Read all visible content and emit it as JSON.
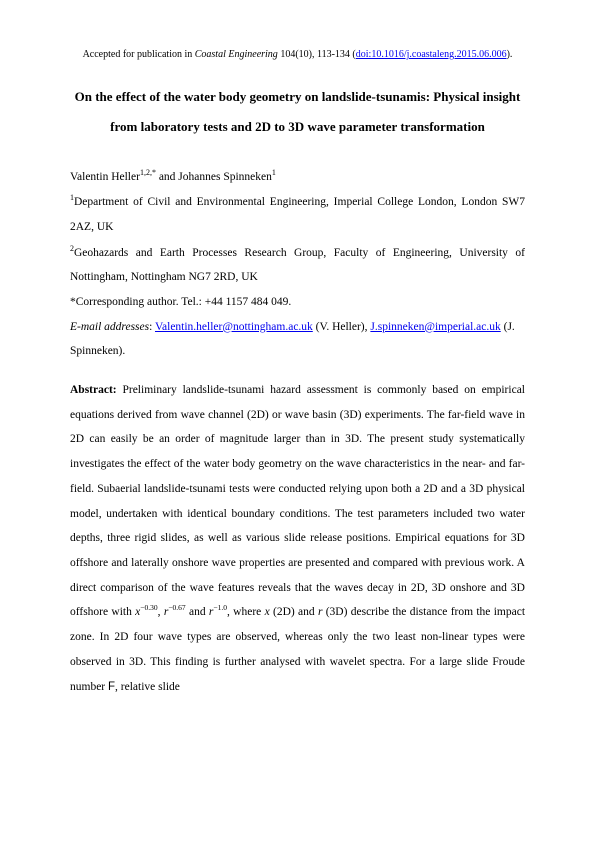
{
  "header": {
    "prefix": "Accepted for publication in ",
    "journal": "Coastal Engineering",
    "citation": " 104(10), 113-134 (",
    "doi_label": "doi:10.1016/j.coastaleng.2015.06.006",
    "suffix": ")."
  },
  "title": "On the effect of the water body geometry on landslide-tsunamis: Physical insight from laboratory tests and 2D to 3D wave parameter transformation",
  "authors": {
    "a1_name": "Valentin Heller",
    "a1_sup": "1,2,*",
    "joiner": " and ",
    "a2_name": "Johannes Spinneken",
    "a2_sup": "1"
  },
  "affiliations": {
    "aff1_sup": "1",
    "aff1_text": "Department of Civil and Environmental Engineering, Imperial College London, London SW7 2AZ, UK",
    "aff2_sup": "2",
    "aff2_text": "Geohazards and Earth Processes Research Group, Faculty of Engineering, University of Nottingham, Nottingham NG7 2RD, UK"
  },
  "corresponding": "*Corresponding author. Tel.: +44 1157 484 049.",
  "emails": {
    "label": "E-mail addresses",
    "sep": ": ",
    "e1": "Valentin.heller@nottingham.ac.uk",
    "e1_after": " (V. Heller), ",
    "e2": "J.spinneken@imperial.ac.uk",
    "e2_after": " (J. Spinneken)."
  },
  "abstract": {
    "label": "Abstract:",
    "p1": " Preliminary landslide-tsunami hazard assessment is commonly based on empirical equations derived from wave channel (2D) or wave basin (3D) experiments. The far-field wave in 2D can easily be an order of magnitude larger than in 3D. The present study systematically investigates the effect of the water body geometry on the wave characteristics in the near- and far-field. Subaerial landslide-tsunami tests were conducted relying upon both a 2D and a 3D physical model, undertaken with identical boundary conditions. The test parameters included two water depths, three rigid slides, as well as various slide release positions. Empirical equations for 3D offshore and laterally onshore wave properties are presented and compared with previous work. A direct comparison of the wave features reveals that the waves decay in 2D, 3D onshore and 3D offshore with ",
    "m1_base": "x",
    "m1_exp": "−0.30",
    "p2": ", ",
    "m2_base": "r",
    "m2_exp": "−0.67",
    "p3": " and ",
    "m3_base": "r",
    "m3_exp": "−1.0",
    "p4": ", where ",
    "m_x": "x",
    "p5": " (2D) and ",
    "m_r": "r",
    "p6": " (3D) describe the distance from the impact zone. In 2D four wave types are observed, whereas only the two least non-linear types were observed in 3D. This finding is further analysed with wavelet spectra. For a large slide Froude number ",
    "m_F": "F",
    "p7": ", relative slide"
  },
  "colors": {
    "text": "#000000",
    "link": "#0000ee",
    "background": "#ffffff"
  }
}
